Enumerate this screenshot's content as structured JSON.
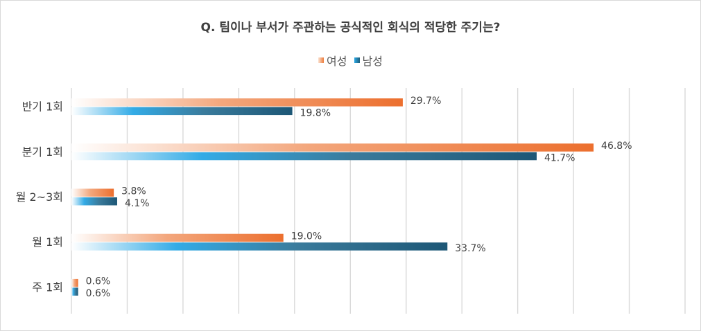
{
  "chart_data": {
    "type": "bar",
    "orientation": "horizontal",
    "title": "Q. 팀이나 부서가 주관하는 공식적인 회식의 적당한 주기는?",
    "categories": [
      "반기 1회",
      "분기 1회",
      "월 2~3회",
      "월 1회",
      "주 1회"
    ],
    "series": [
      {
        "name": "여성",
        "values": [
          29.7,
          46.8,
          3.8,
          19.0,
          0.6
        ],
        "labels": [
          "29.7%",
          "46.8%",
          "3.8%",
          "19.0%",
          "0.6%"
        ],
        "color": "#ec7a3a"
      },
      {
        "name": "남성",
        "values": [
          19.8,
          41.7,
          4.1,
          33.7,
          0.6
        ],
        "labels": [
          "19.8%",
          "41.7%",
          "4.1%",
          "33.7%",
          "0.6%"
        ],
        "color": "#1f5e7a"
      }
    ],
    "xlim": [
      0,
      55
    ],
    "grid": true,
    "legend_position": "top"
  }
}
